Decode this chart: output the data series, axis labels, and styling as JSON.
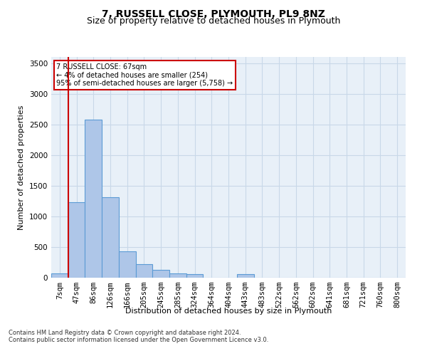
{
  "title": "7, RUSSELL CLOSE, PLYMOUTH, PL9 8NZ",
  "subtitle": "Size of property relative to detached houses in Plymouth",
  "xlabel": "Distribution of detached houses by size in Plymouth",
  "ylabel": "Number of detached properties",
  "footer_line1": "Contains HM Land Registry data © Crown copyright and database right 2024.",
  "footer_line2": "Contains public sector information licensed under the Open Government Licence v3.0.",
  "annotation_line1": "7 RUSSELL CLOSE: 67sqm",
  "annotation_line2": "← 4% of detached houses are smaller (254)",
  "annotation_line3": "95% of semi-detached houses are larger (5,758) →",
  "bar_categories": [
    "7sqm",
    "47sqm",
    "86sqm",
    "126sqm",
    "166sqm",
    "205sqm",
    "245sqm",
    "285sqm",
    "324sqm",
    "364sqm",
    "404sqm",
    "443sqm",
    "483sqm",
    "522sqm",
    "562sqm",
    "602sqm",
    "641sqm",
    "681sqm",
    "721sqm",
    "760sqm",
    "800sqm"
  ],
  "bar_values": [
    70,
    1230,
    2580,
    1310,
    430,
    220,
    130,
    70,
    55,
    0,
    0,
    55,
    0,
    0,
    0,
    0,
    0,
    0,
    0,
    0,
    0
  ],
  "bar_color": "#aec6e8",
  "bar_edge_color": "#5b9bd5",
  "bar_edge_width": 0.8,
  "grid_color": "#c8d8e8",
  "background_color": "#e8f0f8",
  "ylim": [
    0,
    3600
  ],
  "yticks": [
    0,
    500,
    1000,
    1500,
    2000,
    2500,
    3000,
    3500
  ],
  "annotation_box_color": "#ffffff",
  "annotation_box_edge": "#cc0000",
  "red_line_color": "#cc0000",
  "title_fontsize": 10,
  "subtitle_fontsize": 9,
  "axis_label_fontsize": 8,
  "tick_fontsize": 7.5,
  "footer_fontsize": 6,
  "annotation_fontsize": 7
}
